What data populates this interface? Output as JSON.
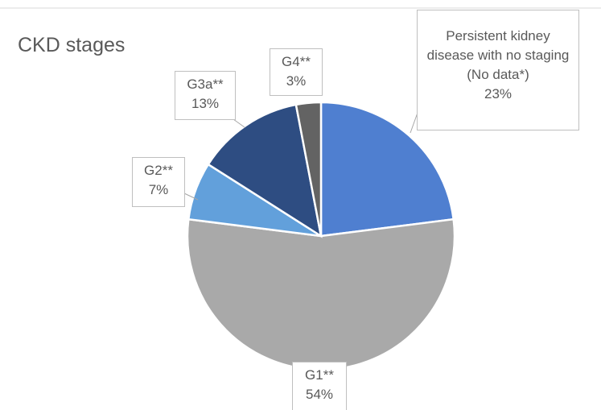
{
  "chart_data": {
    "type": "pie",
    "title": "CKD stages",
    "categories": [
      "Persistent kidney disease with no staging (No data*)",
      "G1**",
      "G2**",
      "G3a**",
      "G4**"
    ],
    "values": [
      23,
      54,
      7,
      13,
      3
    ],
    "value_labels": [
      "23%",
      "54%",
      "7%",
      "13%",
      "3%"
    ],
    "colors": [
      "#4f7fd0",
      "#a9a9a9",
      "#62a0db",
      "#2e4d82",
      "#636363"
    ]
  }
}
